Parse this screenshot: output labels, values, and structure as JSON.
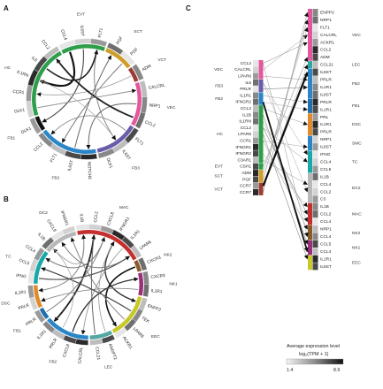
{
  "panel_labels": [
    "A",
    "B",
    "C"
  ],
  "panelA": {
    "label": "A",
    "segments": [
      {
        "cell": "EVT",
        "color": "#2e9e4b",
        "genes": [
          "CCL4",
          "IL6ST",
          "FLT1"
        ]
      },
      {
        "cell": "SCT",
        "color": "#cf9e2a",
        "genes": [
          "PGF",
          "PGF"
        ]
      },
      {
        "cell": "VCT",
        "color": "#9d3b35",
        "genes": [
          "ADM"
        ]
      },
      {
        "cell": "VEC",
        "color": "#e4579c",
        "genes": [
          "CALCRL",
          "NRP1",
          "CCL2"
        ]
      },
      {
        "cell": "FB3",
        "color": "#6a5cab",
        "genes": [
          "FLT1",
          "IL6ST",
          "DLK1"
        ]
      },
      {
        "cell": "FB2",
        "color": "#2b86c7",
        "genes": [
          "NOTCH3",
          "IL6ST",
          "FLT1",
          "CCL2"
        ]
      },
      {
        "cell": "FB1",
        "color": "#111111",
        "genes": [
          "DLK1"
        ]
      },
      {
        "cell": "HC",
        "color": "#2e9e4b",
        "genes": [
          "DLK1",
          "CCR1",
          "IL1RN",
          "IL6",
          "CCL2"
        ]
      }
    ]
  },
  "panelB": {
    "label": "B",
    "segments": [
      {
        "cell": "MAC",
        "color": "#c62f2f",
        "genes": [
          "IL1B",
          "CCL2",
          "CXCL8",
          "IFNGR1",
          "IL1R1",
          "LPAR6"
        ]
      },
      {
        "cell": "NK2",
        "color": "#8b5a2b",
        "genes": [
          "CXCR3"
        ]
      },
      {
        "cell": "NK1",
        "color": "#9b2f7b",
        "genes": [
          "CXCR3",
          "IL1R1"
        ]
      },
      {
        "cell": "EEC",
        "color": "#c8c928",
        "genes": [
          "ENPP2",
          "TEK",
          "LPAR6",
          "ACKR1"
        ]
      },
      {
        "cell": "LEC",
        "color": "#55a8a4",
        "genes": [
          "ANGPT2",
          "CCL21"
        ]
      },
      {
        "cell": "FB2",
        "color": "#2b86c7",
        "genes": [
          "CALCRL",
          "CXCL8",
          "PRLR",
          "IL1R1"
        ]
      },
      {
        "cell": "FB1",
        "color": "#1f6fae",
        "genes": [
          "PRLR"
        ]
      },
      {
        "cell": "DSC",
        "color": "#e08a2b",
        "genes": [
          "PRLR",
          "IL1R1"
        ]
      },
      {
        "cell": "TC",
        "color": "#18a8a8",
        "genes": [
          "IFNG",
          "CCL5",
          "CCL4"
        ]
      },
      {
        "cell": "DC2",
        "color": "#b8b8b8",
        "genes": [
          "IL1B",
          "CXCL8",
          "IFNGR1"
        ]
      }
    ]
  },
  "panelC": {
    "label": "C",
    "left_groups": [
      {
        "cell": "VEC",
        "color": "#e4579c",
        "genes": [
          "CCL2",
          "CALCRL",
          "LPAR6"
        ]
      },
      {
        "cell": "FB3",
        "color": "#6a5cab",
        "genes": [
          "IL6",
          "PRLR"
        ]
      },
      {
        "cell": "FB2",
        "color": "#2b86c7",
        "genes": [
          "IL1R1",
          "IFNGR2"
        ]
      },
      {
        "cell": "HC",
        "color": "#2e9e4b",
        "genes": [
          "CCL2",
          "IL1B",
          "IL1RN",
          "CCL2",
          "LPAR6",
          "CCR1",
          "IFNGR1",
          "IFNGR2",
          "C3AR1"
        ]
      },
      {
        "cell": "EVT",
        "color": "#2e9e4b",
        "genes": [
          "CSH1"
        ]
      },
      {
        "cell": "SCT",
        "color": "#cf9e2a",
        "genes": [
          "ADM",
          "PGF"
        ]
      },
      {
        "cell": "VCT",
        "color": "#9d3b35",
        "genes": [
          "CCR7",
          "CCR7"
        ]
      }
    ],
    "right_groups": [
      {
        "cell": "VEC",
        "color": "#e4579c",
        "genes": [
          "ENPP2",
          "NRP1",
          "FLT1",
          "CALCRL",
          "ACKR1",
          "CCL2",
          "ADM"
        ]
      },
      {
        "cell": "LEC",
        "color": "#2aa8a0",
        "genes": [
          "CCL21"
        ]
      },
      {
        "cell": "FB2",
        "color": "#2b86c7",
        "genes": [
          "IL6ST",
          "PRLR",
          "IL1R1",
          "IL6ST"
        ]
      },
      {
        "cell": "FB1",
        "color": "#1f6fae",
        "genes": [
          "PRLR",
          "IL1R1"
        ]
      },
      {
        "cell": "DSC",
        "color": "#e08a2b",
        "genes": [
          "PRL",
          "IL1R1",
          "PRLR"
        ]
      },
      {
        "cell": "SMC",
        "color": "#2b86c7",
        "genes": [
          "NRP1",
          "IL6ST"
        ]
      },
      {
        "cell": "TC",
        "color": "#18a8a8",
        "genes": [
          "IFNG",
          "CCL4",
          "CCL5"
        ]
      },
      {
        "cell": "DC2",
        "color": "#b8b8b8",
        "genes": [
          "IL1B",
          "CCL4",
          "CCL2",
          "C3"
        ]
      },
      {
        "cell": "MAC",
        "color": "#c62f2f",
        "genes": [
          "IL1B",
          "CCL2",
          "CCL4"
        ]
      },
      {
        "cell": "NK2",
        "color": "#8b5a2b",
        "genes": [
          "NRP1",
          "CCL4"
        ]
      },
      {
        "cell": "NK1",
        "color": "#9b2f7b",
        "genes": [
          "CCL5",
          "CCL4"
        ]
      },
      {
        "cell": "EEC",
        "color": "#c8c928",
        "genes": [
          "IL1R1",
          "IL6ST"
        ]
      }
    ]
  },
  "legend": {
    "title_line1": "Average expression level",
    "title_line2": "log₂(TPM + 1)",
    "min": "1.4",
    "max": "8.9"
  }
}
